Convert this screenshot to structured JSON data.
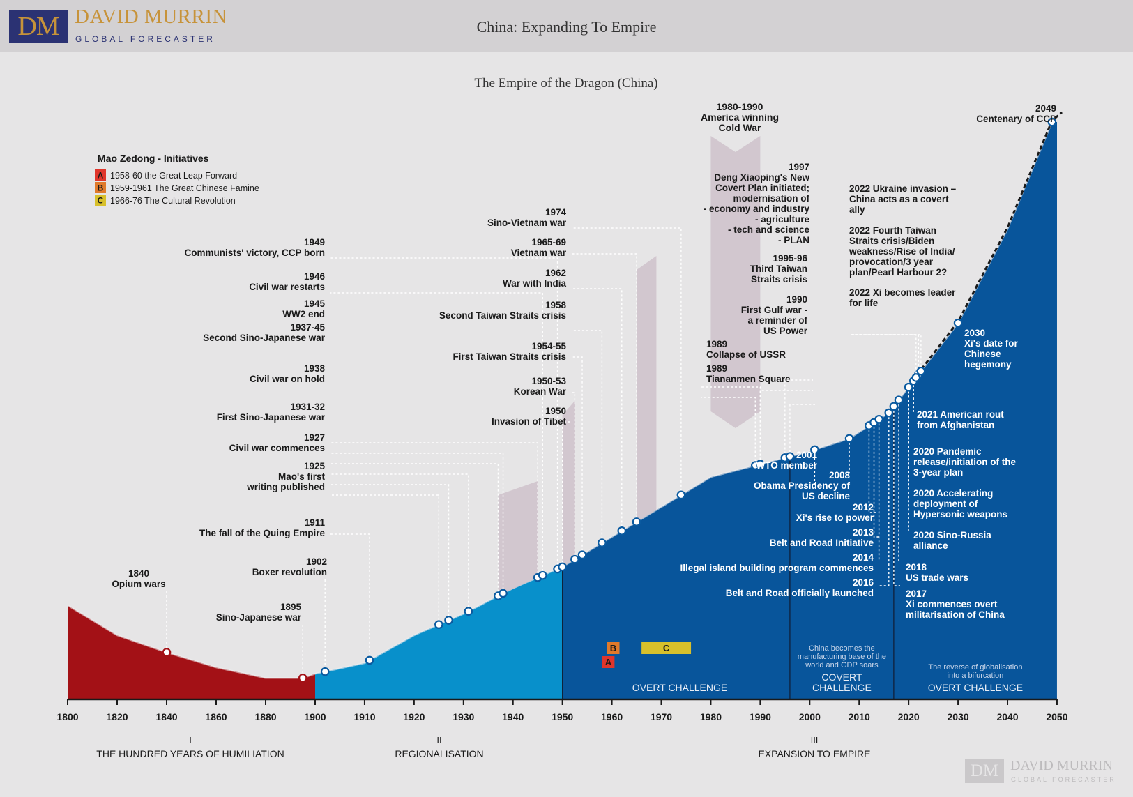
{
  "header": {
    "logo_mark": "DM",
    "logo_name": "DAVID MURRIN",
    "logo_sub": "GLOBAL FORECASTER",
    "title": "China: Expanding To Empire"
  },
  "footer_logo": {
    "mark": "DM",
    "name": "DAVID MURRIN",
    "sub": "GLOBAL FORECASTER"
  },
  "chart_data": {
    "type": "area",
    "title": "The Empire of the Dragon (China)",
    "xlim": [
      1800,
      2050
    ],
    "x_ticks": [
      1800,
      1820,
      1840,
      1860,
      1880,
      1900,
      1910,
      1920,
      1930,
      1940,
      1950,
      1960,
      1970,
      1980,
      1990,
      2000,
      2010,
      2020,
      2030,
      2040,
      2050
    ],
    "colors": {
      "humiliation": "#a31116",
      "regionalisation": "#0890cb",
      "expansion": "#08559b",
      "shade": "#cfc3cc",
      "label": "#1a1a1a",
      "inner_label": "#ffffff"
    },
    "curve": {
      "x": [
        1800,
        1820,
        1840,
        1860,
        1880,
        1895,
        1900,
        1910,
        1920,
        1930,
        1940,
        1950,
        1960,
        1970,
        1980,
        1990,
        2000,
        2008,
        2016,
        2020,
        2030,
        2040,
        2049
      ],
      "y": [
        22,
        15,
        11,
        7.5,
        5,
        5,
        6,
        8.5,
        15,
        20,
        26,
        31,
        38,
        45,
        52,
        55,
        58,
        61,
        67,
        73,
        88,
        110,
        135
      ]
    },
    "eras": [
      {
        "numeral": "I",
        "label": "THE HUNDRED YEARS OF HUMILIATION",
        "x0": 1800,
        "x1": 1900,
        "color": "#a31116"
      },
      {
        "numeral": "II",
        "label": "REGIONALISATION",
        "x0": 1900,
        "x1": 1950,
        "color": "#0890cb"
      },
      {
        "numeral": "III",
        "label": "EXPANSION TO EMPIRE",
        "x0": 1950,
        "x1": 2050,
        "color": "#08559b"
      }
    ],
    "phases": [
      {
        "label": [
          "OVERT CHALLENGE"
        ],
        "note": [],
        "x0": 1950,
        "x1": 1996
      },
      {
        "label": [
          "COVERT",
          "CHALLENGE"
        ],
        "note": [
          "China becomes the",
          "manufacturing base of the",
          "world and GDP soars"
        ],
        "x0": 1996,
        "x1": 2017
      },
      {
        "label": [
          "OVERT CHALLENGE"
        ],
        "note": [
          "The reverse of  globalisation",
          "into a bifurcation"
        ],
        "x0": 2017,
        "x1": 2050
      }
    ],
    "legend": {
      "title": "Mao Zedong - Initiatives",
      "items": [
        {
          "letter": "A",
          "text": "1958-60 the Great Leap Forward",
          "color": "#e0352b",
          "x0": 1958,
          "x1": 1960
        },
        {
          "letter": "B",
          "text": "1959-1961 The Great Chinese Famine",
          "color": "#e07a2b",
          "x0": 1959,
          "x1": 1961
        },
        {
          "letter": "C",
          "text": "1966-76 The Cultural Revolution",
          "color": "#d8c02b",
          "x0": 1966,
          "x1": 1976
        }
      ]
    },
    "cold_war_note": [
      "1980-1990",
      "America winning",
      "Cold War"
    ],
    "events": [
      {
        "year": 1840,
        "lines": [
          "1840",
          "Opium wars"
        ]
      },
      {
        "year": 1895,
        "lines": [
          "1895",
          "Sino-Japanese war"
        ]
      },
      {
        "year": 1902,
        "lines": [
          "1902",
          "Boxer revolution"
        ]
      },
      {
        "year": 1911,
        "lines": [
          "1911",
          "The fall of the Quing Empire"
        ]
      },
      {
        "year": 1925,
        "lines": [
          "1925",
          "Mao's first",
          "writing published"
        ]
      },
      {
        "year": 1927,
        "lines": [
          "1927",
          "Civil war commences"
        ]
      },
      {
        "year": 1931,
        "lines": [
          "1931-32",
          "First Sino-Japanese war"
        ]
      },
      {
        "year": 1937,
        "lines": [
          "1937-45",
          "Second Sino-Japanese war"
        ]
      },
      {
        "year": 1938,
        "lines": [
          "1938",
          "Civil war on hold"
        ]
      },
      {
        "year": 1945,
        "lines": [
          "1945",
          "WW2 end"
        ]
      },
      {
        "year": 1946,
        "lines": [
          "1946",
          "Civil war restarts"
        ]
      },
      {
        "year": 1949,
        "lines": [
          "1949",
          "Communists' victory, CCP born"
        ]
      },
      {
        "year": 1950,
        "lines": [
          "1950",
          "Invasion of Tibet"
        ]
      },
      {
        "year": 1950,
        "lines": [
          "1950-53",
          "Korean War"
        ]
      },
      {
        "year": 1954,
        "lines": [
          "1954-55",
          "First Taiwan Straits crisis"
        ]
      },
      {
        "year": 1958,
        "lines": [
          "1958",
          "Second Taiwan Straits crisis"
        ]
      },
      {
        "year": 1962,
        "lines": [
          "1962",
          "War with India"
        ]
      },
      {
        "year": 1965,
        "lines": [
          "1965-69",
          "Vietnam war"
        ]
      },
      {
        "year": 1974,
        "lines": [
          "1974",
          "Sino-Vietnam war"
        ]
      },
      {
        "year": 1989,
        "lines": [
          "1989",
          "Collapse of USSR"
        ]
      },
      {
        "year": 1989,
        "lines": [
          "1989",
          "Tiananmen Square"
        ]
      },
      {
        "year": 1990,
        "lines": [
          "1990",
          "First Gulf war -",
          "a reminder of",
          "US Power"
        ]
      },
      {
        "year": 1995,
        "lines": [
          "1995-96",
          "Third Taiwan",
          "Straits crisis"
        ]
      },
      {
        "year": 1997,
        "lines": [
          "1997",
          "Deng Xiaoping's New",
          "Covert Plan initiated;",
          "modernisation of",
          "- economy and industry",
          "- agriculture",
          "- tech and science",
          "- PLAN"
        ]
      },
      {
        "year": 2001,
        "lines": [
          "2001",
          "WTO member"
        ]
      },
      {
        "year": 2008,
        "lines": [
          "2008",
          "Obama Presidency of",
          "US decline"
        ]
      },
      {
        "year": 2012,
        "lines": [
          "2012",
          "Xi's rise to power"
        ]
      },
      {
        "year": 2013,
        "lines": [
          "2013",
          "Belt and Road Initiative"
        ]
      },
      {
        "year": 2014,
        "lines": [
          "2014",
          "Illegal island building program commences"
        ]
      },
      {
        "year": 2016,
        "lines": [
          "2016",
          "Belt and Road officially launched"
        ]
      },
      {
        "year": 2017,
        "lines": [
          "2017",
          "Xi commences overt",
          "militarisation of China"
        ]
      },
      {
        "year": 2018,
        "lines": [
          "2018",
          "US trade wars"
        ]
      },
      {
        "year": 2020,
        "lines": [
          "2020 Sino-Russia",
          "alliance"
        ]
      },
      {
        "year": 2020,
        "lines": [
          "2020 Accelerating",
          "deployment of",
          "Hypersonic weapons"
        ]
      },
      {
        "year": 2020,
        "lines": [
          "2020 Pandemic",
          "release/initiation of the",
          "3-year plan"
        ]
      },
      {
        "year": 2021,
        "lines": [
          "2021 American rout",
          "from Afghanistan"
        ]
      },
      {
        "year": 2022,
        "lines": [
          "2022 Ukraine invasion –",
          "China acts as a covert",
          "ally"
        ]
      },
      {
        "year": 2022,
        "lines": [
          "2022 Fourth Taiwan",
          "Straits crisis/Biden",
          "weakness/Rise of India/",
          "provocation/3 year",
          "plan/Pearl Harbour 2?"
        ]
      },
      {
        "year": 2022,
        "lines": [
          "2022 Xi becomes leader",
          "for life"
        ]
      },
      {
        "year": 2030,
        "lines": [
          "2030",
          "Xi's date for",
          "Chinese",
          "hegemony"
        ]
      },
      {
        "year": 2049,
        "lines": [
          "2049",
          "Centenary of CCP"
        ]
      }
    ]
  }
}
